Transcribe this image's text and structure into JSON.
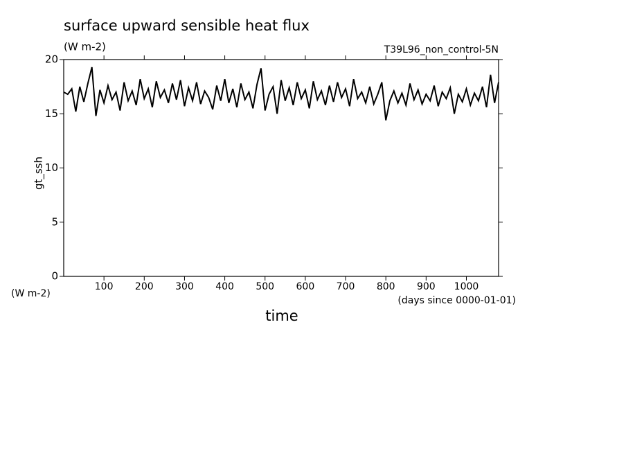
{
  "chart_data": {
    "type": "line",
    "title": "surface upward sensible heat flux",
    "subtitle": "(W m-2)",
    "run_label": "T39L96_non_control-5N",
    "ylabel": "gt_ssh",
    "y_unit_label": "(W m-2)",
    "xlabel": "time",
    "x_unit_label": "(days since 0000-01-01)",
    "xlim": [
      0,
      1080
    ],
    "ylim": [
      0,
      20
    ],
    "xticks": [
      100,
      200,
      300,
      400,
      500,
      600,
      700,
      800,
      900,
      1000
    ],
    "yticks": [
      0,
      5,
      10,
      15,
      20
    ],
    "x": [
      0,
      10,
      20,
      30,
      40,
      50,
      60,
      70,
      80,
      90,
      100,
      110,
      120,
      130,
      140,
      150,
      160,
      170,
      180,
      190,
      200,
      210,
      220,
      230,
      240,
      250,
      260,
      270,
      280,
      290,
      300,
      310,
      320,
      330,
      340,
      350,
      360,
      370,
      380,
      390,
      400,
      410,
      420,
      430,
      440,
      450,
      460,
      470,
      480,
      490,
      500,
      510,
      520,
      530,
      540,
      550,
      560,
      570,
      580,
      590,
      600,
      610,
      620,
      630,
      640,
      650,
      660,
      670,
      680,
      690,
      700,
      710,
      720,
      730,
      740,
      750,
      760,
      770,
      780,
      790,
      800,
      810,
      820,
      830,
      840,
      850,
      860,
      870,
      880,
      890,
      900,
      910,
      920,
      930,
      940,
      950,
      960,
      970,
      980,
      990,
      1000,
      1010,
      1020,
      1030,
      1040,
      1050,
      1060,
      1070,
      1080
    ],
    "series": [
      {
        "color": "#000000",
        "values": [
          17.0,
          16.8,
          17.3,
          15.2,
          17.5,
          16.1,
          17.8,
          19.3,
          14.8,
          17.2,
          16.0,
          17.6,
          16.3,
          17.0,
          15.3,
          17.9,
          16.2,
          17.1,
          15.8,
          18.2,
          16.4,
          17.3,
          15.6,
          18.0,
          16.5,
          17.2,
          16.0,
          17.8,
          16.3,
          18.1,
          15.7,
          17.4,
          16.2,
          17.9,
          15.9,
          17.1,
          16.5,
          15.4,
          17.6,
          16.2,
          18.2,
          16.0,
          17.3,
          15.6,
          17.8,
          16.3,
          17.0,
          15.5,
          17.7,
          19.2,
          15.3,
          16.8,
          17.5,
          15.0,
          18.1,
          16.2,
          17.4,
          15.8,
          17.9,
          16.4,
          17.2,
          15.5,
          18.0,
          16.3,
          17.1,
          15.8,
          17.6,
          16.1,
          17.9,
          16.5,
          17.3,
          15.7,
          18.2,
          16.4,
          17.0,
          16.0,
          17.5,
          15.9,
          16.8,
          17.9,
          14.4,
          16.2,
          17.1,
          16.0,
          16.9,
          15.8,
          17.8,
          16.3,
          17.2,
          15.9,
          16.8,
          16.2,
          17.6,
          15.7,
          17.0,
          16.4,
          17.4,
          15.0,
          16.8,
          16.1,
          17.3,
          15.8,
          16.9,
          16.2,
          17.5,
          15.6,
          18.6,
          16.0,
          17.9
        ]
      }
    ]
  }
}
